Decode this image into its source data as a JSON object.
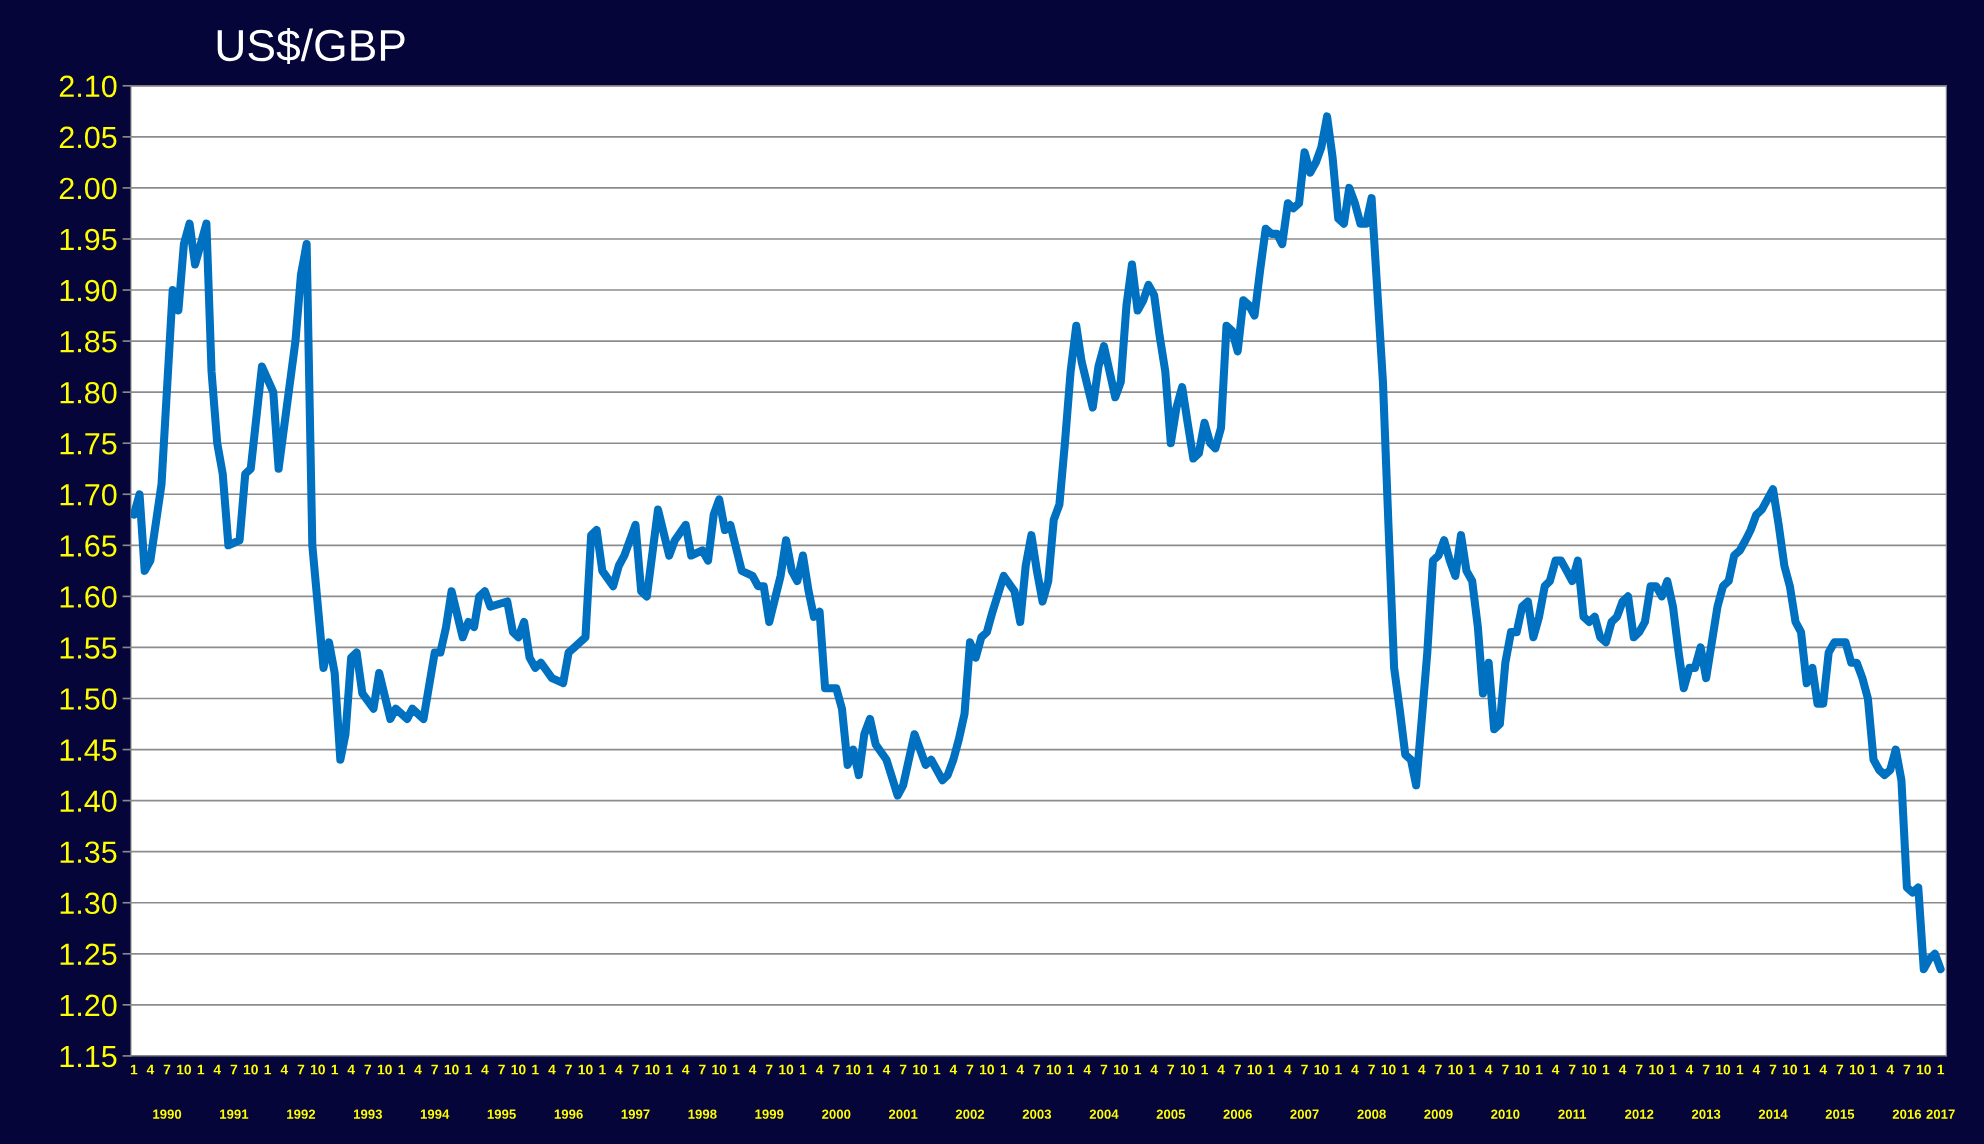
{
  "chart_data": {
    "type": "line",
    "title": "US$/GBP",
    "x": [
      "1990-01",
      "1990-02",
      "1990-03",
      "1990-04",
      "1990-06",
      "1990-08",
      "1990-09",
      "1990-10",
      "1990-11",
      "1990-12",
      "1991-02",
      "1991-03",
      "1991-04",
      "1991-05",
      "1991-06",
      "1991-08",
      "1991-09",
      "1991-10",
      "1991-12",
      "1992-02",
      "1992-03",
      "1992-06",
      "1992-07",
      "1992-08",
      "1992-09",
      "1992-11",
      "1992-12",
      "1993-01",
      "1993-02",
      "1993-03",
      "1993-04",
      "1993-05",
      "1993-06",
      "1993-08",
      "1993-09",
      "1993-11",
      "1993-12",
      "1994-02",
      "1994-03",
      "1994-05",
      "1994-07",
      "1994-08",
      "1994-09",
      "1994-10",
      "1994-12",
      "1995-01",
      "1995-02",
      "1995-03",
      "1995-04",
      "1995-05",
      "1995-08",
      "1995-09",
      "1995-10",
      "1995-11",
      "1995-12",
      "1996-01",
      "1996-02",
      "1996-04",
      "1996-06",
      "1996-07",
      "1996-08",
      "1996-09",
      "1996-10",
      "1996-11",
      "1996-12",
      "1997-01",
      "1997-03",
      "1997-04",
      "1997-05",
      "1997-07",
      "1997-08",
      "1997-09",
      "1997-11",
      "1998-01",
      "1998-02",
      "1998-04",
      "1998-05",
      "1998-07",
      "1998-08",
      "1998-09",
      "1998-10",
      "1998-11",
      "1998-12",
      "1999-02",
      "1999-04",
      "1999-05",
      "1999-06",
      "1999-07",
      "1999-09",
      "1999-10",
      "1999-11",
      "1999-12",
      "2000-01",
      "2000-02",
      "2000-03",
      "2000-04",
      "2000-05",
      "2000-07",
      "2000-08",
      "2000-09",
      "2000-10",
      "2000-11",
      "2000-12",
      "2001-01",
      "2001-02",
      "2001-04",
      "2001-06",
      "2001-07",
      "2001-09",
      "2001-11",
      "2001-12",
      "2002-02",
      "2002-03",
      "2002-04",
      "2002-05",
      "2002-06",
      "2002-07",
      "2002-08",
      "2002-09",
      "2002-10",
      "2002-11",
      "2003-01",
      "2003-03",
      "2003-04",
      "2003-05",
      "2003-06",
      "2003-07",
      "2003-08",
      "2003-09",
      "2003-10",
      "2003-11",
      "2003-12",
      "2004-01",
      "2004-02",
      "2004-03",
      "2004-05",
      "2004-06",
      "2004-07",
      "2004-09",
      "2004-10",
      "2004-11",
      "2004-12",
      "2005-01",
      "2005-02",
      "2005-03",
      "2005-04",
      "2005-05",
      "2005-06",
      "2005-07",
      "2005-08",
      "2005-09",
      "2005-10",
      "2005-11",
      "2005-12",
      "2006-01",
      "2006-02",
      "2006-03",
      "2006-04",
      "2006-05",
      "2006-06",
      "2006-07",
      "2006-08",
      "2006-09",
      "2006-10",
      "2006-11",
      "2006-12",
      "2007-01",
      "2007-02",
      "2007-03",
      "2007-04",
      "2007-05",
      "2007-06",
      "2007-07",
      "2007-08",
      "2007-09",
      "2007-10",
      "2007-11",
      "2007-12",
      "2008-01",
      "2008-02",
      "2008-03",
      "2008-04",
      "2008-05",
      "2008-06",
      "2008-07",
      "2008-08",
      "2008-09",
      "2008-10",
      "2008-11",
      "2008-12",
      "2009-01",
      "2009-02",
      "2009-03",
      "2009-04",
      "2009-05",
      "2009-06",
      "2009-07",
      "2009-08",
      "2009-09",
      "2009-10",
      "2009-11",
      "2009-12",
      "2010-01",
      "2010-02",
      "2010-03",
      "2010-04",
      "2010-05",
      "2010-06",
      "2010-07",
      "2010-08",
      "2010-09",
      "2010-10",
      "2010-11",
      "2010-12",
      "2011-01",
      "2011-02",
      "2011-03",
      "2011-04",
      "2011-05",
      "2011-06",
      "2011-07",
      "2011-08",
      "2011-09",
      "2011-10",
      "2011-11",
      "2011-12",
      "2012-01",
      "2012-02",
      "2012-03",
      "2012-04",
      "2012-05",
      "2012-06",
      "2012-07",
      "2012-08",
      "2012-09",
      "2012-10",
      "2012-11",
      "2012-12",
      "2013-01",
      "2013-02",
      "2013-03",
      "2013-04",
      "2013-05",
      "2013-06",
      "2013-07",
      "2013-08",
      "2013-09",
      "2013-10",
      "2013-11",
      "2013-12",
      "2014-01",
      "2014-02",
      "2014-03",
      "2014-04",
      "2014-05",
      "2014-07",
      "2014-08",
      "2014-09",
      "2014-10",
      "2014-11",
      "2014-12",
      "2015-01",
      "2015-02",
      "2015-03",
      "2015-04",
      "2015-05",
      "2015-06",
      "2015-07",
      "2015-08",
      "2015-09",
      "2015-10",
      "2015-11",
      "2015-12",
      "2016-01",
      "2016-02",
      "2016-03",
      "2016-04",
      "2016-05",
      "2016-06",
      "2016-07",
      "2016-08",
      "2016-09",
      "2016-10",
      "2016-11",
      "2016-12",
      "2017-01"
    ],
    "series": [
      {
        "color": "#0070c0",
        "values": [
          1.68,
          1.7,
          1.625,
          1.635,
          1.71,
          1.9,
          1.88,
          1.945,
          1.965,
          1.925,
          1.965,
          1.82,
          1.75,
          1.72,
          1.65,
          1.655,
          1.72,
          1.725,
          1.825,
          1.8,
          1.725,
          1.85,
          1.915,
          1.945,
          1.65,
          1.53,
          1.555,
          1.525,
          1.44,
          1.465,
          1.54,
          1.545,
          1.505,
          1.49,
          1.525,
          1.48,
          1.49,
          1.48,
          1.49,
          1.48,
          1.545,
          1.545,
          1.57,
          1.605,
          1.56,
          1.575,
          1.57,
          1.6,
          1.605,
          1.59,
          1.595,
          1.565,
          1.56,
          1.575,
          1.54,
          1.53,
          1.535,
          1.52,
          1.515,
          1.545,
          1.55,
          1.555,
          1.56,
          1.66,
          1.665,
          1.625,
          1.61,
          1.63,
          1.64,
          1.67,
          1.605,
          1.6,
          1.685,
          1.64,
          1.655,
          1.67,
          1.64,
          1.645,
          1.635,
          1.68,
          1.695,
          1.665,
          1.67,
          1.625,
          1.62,
          1.61,
          1.61,
          1.575,
          1.62,
          1.655,
          1.625,
          1.615,
          1.64,
          1.605,
          1.58,
          1.585,
          1.51,
          1.51,
          1.49,
          1.435,
          1.45,
          1.425,
          1.465,
          1.48,
          1.455,
          1.44,
          1.405,
          1.415,
          1.465,
          1.435,
          1.44,
          1.42,
          1.425,
          1.44,
          1.46,
          1.485,
          1.555,
          1.54,
          1.56,
          1.565,
          1.585,
          1.62,
          1.605,
          1.575,
          1.63,
          1.66,
          1.625,
          1.595,
          1.615,
          1.675,
          1.69,
          1.75,
          1.82,
          1.865,
          1.83,
          1.785,
          1.825,
          1.845,
          1.795,
          1.81,
          1.885,
          1.925,
          1.88,
          1.89,
          1.905,
          1.895,
          1.855,
          1.82,
          1.75,
          1.785,
          1.805,
          1.77,
          1.735,
          1.74,
          1.77,
          1.75,
          1.745,
          1.765,
          1.865,
          1.86,
          1.84,
          1.89,
          1.885,
          1.875,
          1.92,
          1.96,
          1.955,
          1.955,
          1.945,
          1.985,
          1.98,
          1.985,
          2.035,
          2.015,
          2.025,
          2.04,
          2.07,
          2.03,
          1.97,
          1.965,
          2.0,
          1.985,
          1.965,
          1.965,
          1.99,
          1.9,
          1.81,
          1.67,
          1.53,
          1.49,
          1.445,
          1.44,
          1.415,
          1.48,
          1.545,
          1.635,
          1.64,
          1.655,
          1.635,
          1.62,
          1.66,
          1.625,
          1.615,
          1.57,
          1.505,
          1.535,
          1.47,
          1.475,
          1.535,
          1.565,
          1.565,
          1.59,
          1.595,
          1.56,
          1.58,
          1.61,
          1.615,
          1.635,
          1.635,
          1.625,
          1.615,
          1.635,
          1.58,
          1.575,
          1.58,
          1.56,
          1.555,
          1.575,
          1.58,
          1.595,
          1.6,
          1.56,
          1.565,
          1.575,
          1.61,
          1.61,
          1.6,
          1.615,
          1.59,
          1.545,
          1.51,
          1.53,
          1.53,
          1.55,
          1.52,
          1.555,
          1.59,
          1.61,
          1.615,
          1.64,
          1.645,
          1.655,
          1.665,
          1.68,
          1.685,
          1.705,
          1.67,
          1.63,
          1.61,
          1.575,
          1.565,
          1.515,
          1.53,
          1.495,
          1.495,
          1.545,
          1.555,
          1.555,
          1.555,
          1.535,
          1.535,
          1.52,
          1.5,
          1.44,
          1.43,
          1.425,
          1.43,
          1.45,
          1.42,
          1.315,
          1.31,
          1.315,
          1.235,
          1.245,
          1.25,
          1.235
        ]
      }
    ],
    "xlim": [
      "1989-12-16",
      "2017-02-01"
    ],
    "ylim": [
      1.15,
      2.1
    ],
    "yticks": [
      {
        "value": 1.15,
        "label": "1.15"
      },
      {
        "value": 1.2,
        "label": "1.20"
      },
      {
        "value": 1.25,
        "label": "1.25"
      },
      {
        "value": 1.3,
        "label": "1.30"
      },
      {
        "value": 1.35,
        "label": "1.35"
      },
      {
        "value": 1.4,
        "label": "1.40"
      },
      {
        "value": 1.45,
        "label": "1.45"
      },
      {
        "value": 1.5,
        "label": "1.50"
      },
      {
        "value": 1.55,
        "label": "1.55"
      },
      {
        "value": 1.6,
        "label": "1.60"
      },
      {
        "value": 1.65,
        "label": "1.65"
      },
      {
        "value": 1.7,
        "label": "1.70"
      },
      {
        "value": 1.75,
        "label": "1.75"
      },
      {
        "value": 1.8,
        "label": "1.80"
      },
      {
        "value": 1.85,
        "label": "1.85"
      },
      {
        "value": 1.9,
        "label": "1.90"
      },
      {
        "value": 1.95,
        "label": "1.95"
      },
      {
        "value": 2.0,
        "label": "2.00"
      },
      {
        "value": 2.05,
        "label": "2.05"
      },
      {
        "value": 2.1,
        "label": "2.10"
      }
    ],
    "xticks": [
      {
        "value": "1990-01",
        "label": "1"
      },
      {
        "value": "1990-04",
        "label": "4"
      },
      {
        "value": "1990-07",
        "label": "7"
      },
      {
        "value": "1990-10",
        "label": "10"
      },
      {
        "value": "1991-01",
        "label": "1"
      },
      {
        "value": "1991-04",
        "label": "4"
      },
      {
        "value": "1991-07",
        "label": "7"
      },
      {
        "value": "1991-10",
        "label": "10"
      },
      {
        "value": "1992-01",
        "label": "1"
      },
      {
        "value": "1992-04",
        "label": "4"
      },
      {
        "value": "1992-07",
        "label": "7"
      },
      {
        "value": "1992-10",
        "label": "10"
      },
      {
        "value": "1993-01",
        "label": "1"
      },
      {
        "value": "1993-04",
        "label": "4"
      },
      {
        "value": "1993-07",
        "label": "7"
      },
      {
        "value": "1993-10",
        "label": "10"
      },
      {
        "value": "1994-01",
        "label": "1"
      },
      {
        "value": "1994-04",
        "label": "4"
      },
      {
        "value": "1994-07",
        "label": "7"
      },
      {
        "value": "1994-10",
        "label": "10"
      },
      {
        "value": "1995-01",
        "label": "1"
      },
      {
        "value": "1995-04",
        "label": "4"
      },
      {
        "value": "1995-07",
        "label": "7"
      },
      {
        "value": "1995-10",
        "label": "10"
      },
      {
        "value": "1996-01",
        "label": "1"
      },
      {
        "value": "1996-04",
        "label": "4"
      },
      {
        "value": "1996-07",
        "label": "7"
      },
      {
        "value": "1996-10",
        "label": "10"
      },
      {
        "value": "1997-01",
        "label": "1"
      },
      {
        "value": "1997-04",
        "label": "4"
      },
      {
        "value": "1997-07",
        "label": "7"
      },
      {
        "value": "1997-10",
        "label": "10"
      },
      {
        "value": "1998-01",
        "label": "1"
      },
      {
        "value": "1998-04",
        "label": "4"
      },
      {
        "value": "1998-07",
        "label": "7"
      },
      {
        "value": "1998-10",
        "label": "10"
      },
      {
        "value": "1999-01",
        "label": "1"
      },
      {
        "value": "1999-04",
        "label": "4"
      },
      {
        "value": "1999-07",
        "label": "7"
      },
      {
        "value": "1999-10",
        "label": "10"
      },
      {
        "value": "2000-01",
        "label": "1"
      },
      {
        "value": "2000-04",
        "label": "4"
      },
      {
        "value": "2000-07",
        "label": "7"
      },
      {
        "value": "2000-10",
        "label": "10"
      },
      {
        "value": "2001-01",
        "label": "1"
      },
      {
        "value": "2001-04",
        "label": "4"
      },
      {
        "value": "2001-07",
        "label": "7"
      },
      {
        "value": "2001-10",
        "label": "10"
      },
      {
        "value": "2002-01",
        "label": "1"
      },
      {
        "value": "2002-04",
        "label": "4"
      },
      {
        "value": "2002-07",
        "label": "7"
      },
      {
        "value": "2002-10",
        "label": "10"
      },
      {
        "value": "2003-01",
        "label": "1"
      },
      {
        "value": "2003-04",
        "label": "4"
      },
      {
        "value": "2003-07",
        "label": "7"
      },
      {
        "value": "2003-10",
        "label": "10"
      },
      {
        "value": "2004-01",
        "label": "1"
      },
      {
        "value": "2004-04",
        "label": "4"
      },
      {
        "value": "2004-07",
        "label": "7"
      },
      {
        "value": "2004-10",
        "label": "10"
      },
      {
        "value": "2005-01",
        "label": "1"
      },
      {
        "value": "2005-04",
        "label": "4"
      },
      {
        "value": "2005-07",
        "label": "7"
      },
      {
        "value": "2005-10",
        "label": "10"
      },
      {
        "value": "2006-01",
        "label": "1"
      },
      {
        "value": "2006-04",
        "label": "4"
      },
      {
        "value": "2006-07",
        "label": "7"
      },
      {
        "value": "2006-10",
        "label": "10"
      },
      {
        "value": "2007-01",
        "label": "1"
      },
      {
        "value": "2007-04",
        "label": "4"
      },
      {
        "value": "2007-07",
        "label": "7"
      },
      {
        "value": "2007-10",
        "label": "10"
      },
      {
        "value": "2008-01",
        "label": "1"
      },
      {
        "value": "2008-04",
        "label": "4"
      },
      {
        "value": "2008-07",
        "label": "7"
      },
      {
        "value": "2008-10",
        "label": "10"
      },
      {
        "value": "2009-01",
        "label": "1"
      },
      {
        "value": "2009-04",
        "label": "4"
      },
      {
        "value": "2009-07",
        "label": "7"
      },
      {
        "value": "2009-10",
        "label": "10"
      },
      {
        "value": "2010-01",
        "label": "1"
      },
      {
        "value": "2010-04",
        "label": "4"
      },
      {
        "value": "2010-07",
        "label": "7"
      },
      {
        "value": "2010-10",
        "label": "10"
      },
      {
        "value": "2011-01",
        "label": "1"
      },
      {
        "value": "2011-04",
        "label": "4"
      },
      {
        "value": "2011-07",
        "label": "7"
      },
      {
        "value": "2011-10",
        "label": "10"
      },
      {
        "value": "2012-01",
        "label": "1"
      },
      {
        "value": "2012-04",
        "label": "4"
      },
      {
        "value": "2012-07",
        "label": "7"
      },
      {
        "value": "2012-10",
        "label": "10"
      },
      {
        "value": "2013-01",
        "label": "1"
      },
      {
        "value": "2013-04",
        "label": "4"
      },
      {
        "value": "2013-07",
        "label": "7"
      },
      {
        "value": "2013-10",
        "label": "10"
      },
      {
        "value": "2014-01",
        "label": "1"
      },
      {
        "value": "2014-04",
        "label": "4"
      },
      {
        "value": "2014-07",
        "label": "7"
      },
      {
        "value": "2014-10",
        "label": "10"
      },
      {
        "value": "2015-01",
        "label": "1"
      },
      {
        "value": "2015-04",
        "label": "4"
      },
      {
        "value": "2015-07",
        "label": "7"
      },
      {
        "value": "2015-10",
        "label": "10"
      },
      {
        "value": "2016-01",
        "label": "1"
      },
      {
        "value": "2016-04",
        "label": "4"
      },
      {
        "value": "2016-07",
        "label": "7"
      },
      {
        "value": "2016-10",
        "label": "10"
      },
      {
        "value": "2017-01",
        "label": "1"
      }
    ],
    "x2ticks": [
      {
        "value": "1990-07",
        "label": "1990"
      },
      {
        "value": "1991-07",
        "label": "1991"
      },
      {
        "value": "1992-07",
        "label": "1992"
      },
      {
        "value": "1993-07",
        "label": "1993"
      },
      {
        "value": "1994-07",
        "label": "1994"
      },
      {
        "value": "1995-07",
        "label": "1995"
      },
      {
        "value": "1996-07",
        "label": "1996"
      },
      {
        "value": "1997-07",
        "label": "1997"
      },
      {
        "value": "1998-07",
        "label": "1998"
      },
      {
        "value": "1999-07",
        "label": "1999"
      },
      {
        "value": "2000-07",
        "label": "2000"
      },
      {
        "value": "2001-07",
        "label": "2001"
      },
      {
        "value": "2002-07",
        "label": "2002"
      },
      {
        "value": "2003-07",
        "label": "2003"
      },
      {
        "value": "2004-07",
        "label": "2004"
      },
      {
        "value": "2005-07",
        "label": "2005"
      },
      {
        "value": "2006-07",
        "label": "2006"
      },
      {
        "value": "2007-07",
        "label": "2007"
      },
      {
        "value": "2008-07",
        "label": "2008"
      },
      {
        "value": "2009-07",
        "label": "2009"
      },
      {
        "value": "2010-07",
        "label": "2010"
      },
      {
        "value": "2011-07",
        "label": "2011"
      },
      {
        "value": "2012-07",
        "label": "2012"
      },
      {
        "value": "2013-07",
        "label": "2013"
      },
      {
        "value": "2014-07",
        "label": "2014"
      },
      {
        "value": "2015-07",
        "label": "2015"
      },
      {
        "value": "2016-07",
        "label": "2016"
      },
      {
        "value": "2017-01",
        "label": "2017"
      }
    ],
    "x2lim": [
      "1989-12-16",
      "2017-02-01"
    ],
    "grid": "y",
    "marker": "none",
    "line_style": "solid"
  }
}
